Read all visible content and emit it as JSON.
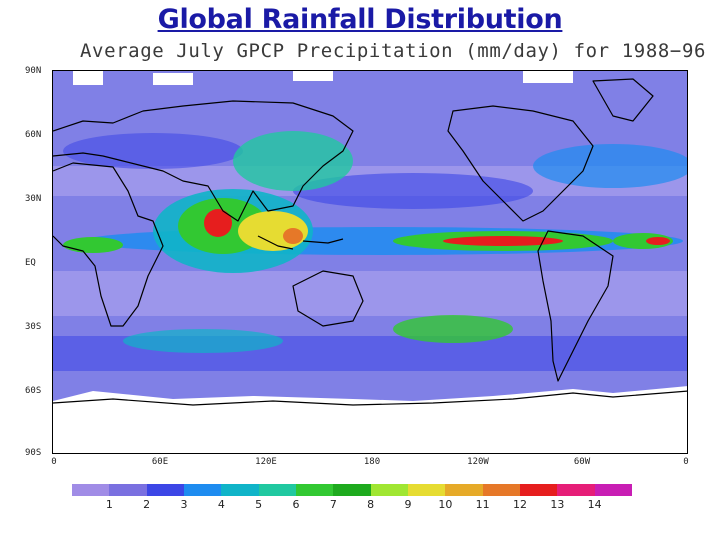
{
  "slide_title": "Global Rainfall Distribution",
  "map": {
    "title": "Average July GPCP Precipitation (mm/day) for 1988−96",
    "lat_labels": [
      "90N",
      "60N",
      "30N",
      "EQ",
      "30S",
      "60S",
      "90S"
    ],
    "lon_labels": [
      "0",
      "60E",
      "120E",
      "180",
      "120W",
      "60W",
      "0"
    ],
    "legend": {
      "levels": [
        "1",
        "2",
        "3",
        "4",
        "5",
        "6",
        "7",
        "8",
        "9",
        "10",
        "11",
        "12",
        "13",
        "14"
      ],
      "colors": [
        "#a08ce6",
        "#7a70e0",
        "#3c46e6",
        "#1e8cf0",
        "#10b4c8",
        "#20c8a0",
        "#32c832",
        "#1eaa1e",
        "#a0e632",
        "#e6dc32",
        "#e6aa28",
        "#e67828",
        "#e61e1e",
        "#e61e78",
        "#c81eb4"
      ]
    },
    "colors": {
      "ocean_base": "#8080e6",
      "dry": "#a8a0ec",
      "continent_outline": "#000000",
      "missing": "#ffffff"
    }
  }
}
